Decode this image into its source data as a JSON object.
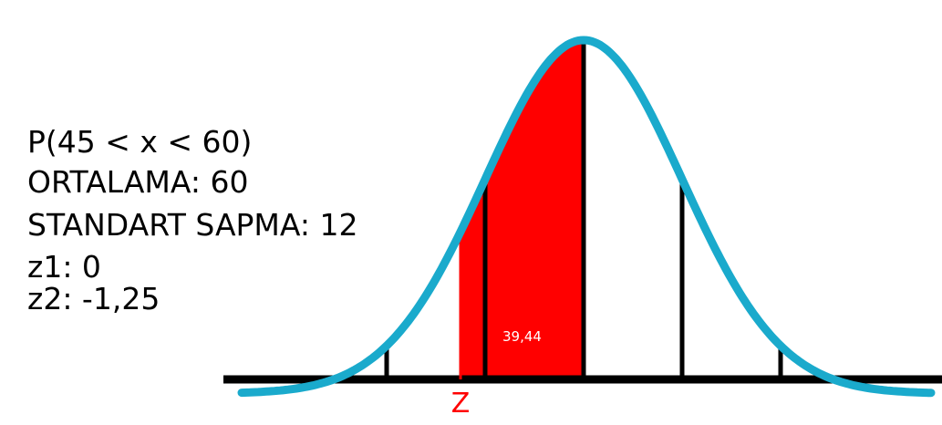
{
  "info": {
    "probability": "P(45 < x < 60)",
    "mean": "ORTALAMA: 60",
    "std_dev": "STANDART SAPMA: 12",
    "z1": "z1: 0",
    "z2": "z2: -1,25"
  },
  "area_label": "39,44",
  "z_marker_label": "Z",
  "colors": {
    "curve": "#1aaacc",
    "shaded_area": "#ff0000",
    "z_marker": "#ff0000",
    "axis": "#000000",
    "sd_lines": "#000000",
    "background": "#ffffff"
  },
  "distribution": {
    "mean": 60,
    "std_dev": 12,
    "shade_from": 45,
    "shade_to": 60
  }
}
